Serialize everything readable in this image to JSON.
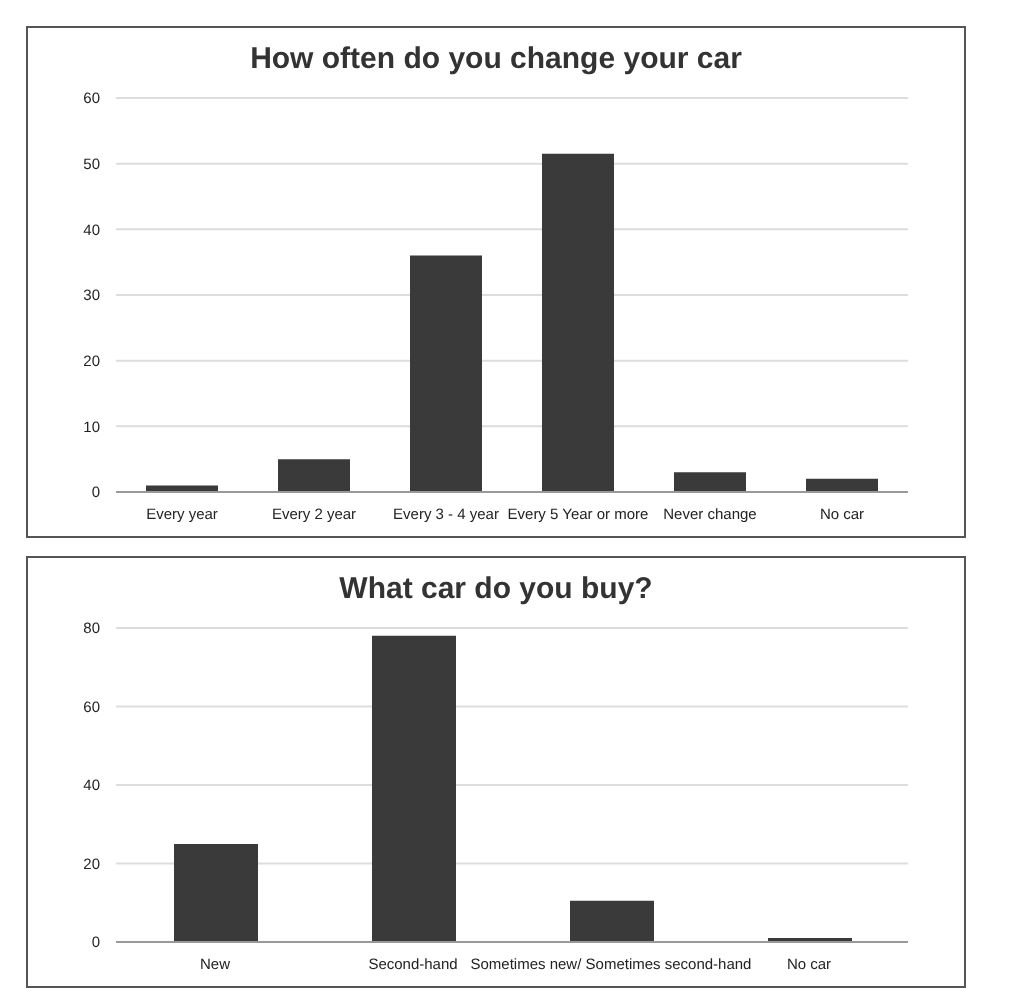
{
  "chart_data": [
    {
      "type": "bar",
      "title": "How often do you change your car",
      "categories": [
        "Every year",
        "Every 2 year",
        "Every 3 - 4 year",
        "Every 5 Year or more",
        "Never change",
        "No car"
      ],
      "values": [
        1,
        5,
        36,
        51.5,
        3,
        2
      ],
      "color": "#3a3a3a",
      "ylim": [
        0,
        60
      ],
      "yticks": [
        0,
        10,
        20,
        30,
        40,
        50,
        60
      ],
      "grid": "y"
    },
    {
      "type": "bar",
      "title": "What car do you buy?",
      "categories": [
        "New",
        "Second-hand",
        "Sometimes new/ Sometimes second-hand",
        "No car"
      ],
      "values": [
        25,
        78,
        10.5,
        1
      ],
      "color": "#3a3a3a",
      "ylim": [
        0,
        80
      ],
      "yticks": [
        0,
        20,
        40,
        60,
        80
      ],
      "grid": "y"
    }
  ]
}
